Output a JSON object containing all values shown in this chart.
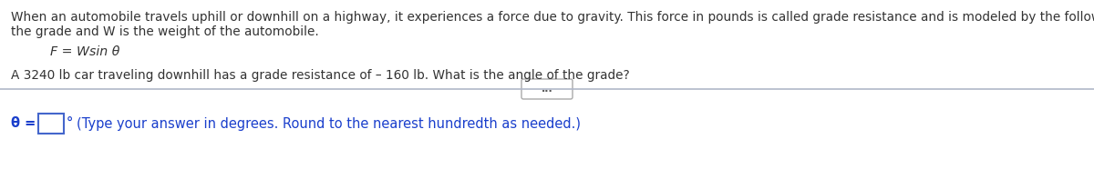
{
  "bg_color": "#ffffff",
  "text_color_black": "#333333",
  "text_color_blue": "#1a3fcc",
  "line1": "When an automobile travels uphill or downhill on a highway, it experiences a force due to gravity. This force in pounds is called grade resistance and is modeled by the following equation, where θ is",
  "line2": "the grade and W is the weight of the automobile.",
  "equation": "F = Wsin θ",
  "problem": "A 3240 lb car traveling downhill has a grade resistance of – 160 lb. What is the angle of the grade?",
  "answer_label": "θ =",
  "degree_symbol": "°",
  "answer_instruction": "(Type your answer in degrees. Round to the nearest hundredth as needed.)",
  "divider_color": "#b0b8c8",
  "box_edge_color": "#4466cc",
  "dots_label": "...",
  "font_size_main": 9.8,
  "font_size_eq": 10.2,
  "font_size_bottom": 10.5
}
